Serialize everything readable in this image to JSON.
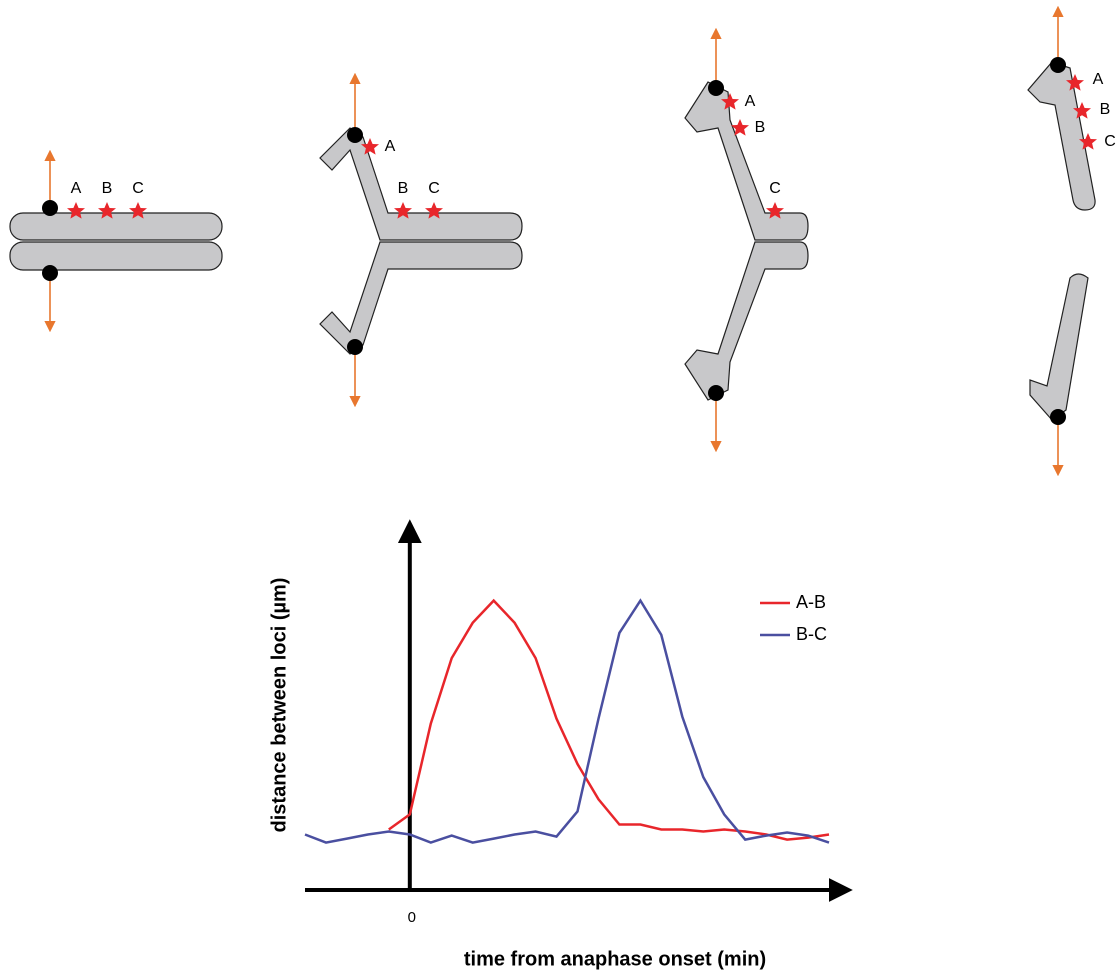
{
  "diagram": {
    "panels": [
      {
        "loci": [
          "A",
          "B",
          "C"
        ]
      },
      {
        "loci": [
          "A",
          "B",
          "C"
        ]
      },
      {
        "loci": [
          "A",
          "B",
          "C"
        ]
      },
      {
        "loci": [
          "A",
          "B",
          "C"
        ]
      }
    ]
  },
  "chart_data": {
    "type": "line",
    "y_label": "distance between loci (µm)",
    "x_label": "time from anaphase onset (min)",
    "x": [
      -5,
      -4,
      -3,
      -2,
      -1,
      0,
      1,
      2,
      3,
      4,
      5,
      6,
      7,
      8,
      9,
      10,
      11,
      12,
      13,
      14,
      15,
      16,
      17,
      18,
      19,
      20
    ],
    "series": [
      {
        "name": "A-B",
        "color": "#e8262b",
        "values": [
          null,
          null,
          null,
          null,
          6,
          7.5,
          16.5,
          23,
          26.5,
          28.7,
          26.5,
          23,
          17,
          12.5,
          9,
          6.5,
          6.5,
          6,
          6,
          5.8,
          6,
          5.8,
          5.5,
          5,
          5.2,
          5.5
        ]
      },
      {
        "name": "B-C",
        "color": "#4a4fa0",
        "values": [
          5.5,
          4.7,
          5.1,
          5.5,
          5.8,
          5.5,
          4.7,
          5.4,
          4.7,
          5.1,
          5.5,
          5.8,
          5.3,
          7.8,
          17,
          25.5,
          28.7,
          25.3,
          17.2,
          11.2,
          7.5,
          5,
          5.4,
          5.7,
          5.4,
          4.7
        ]
      }
    ],
    "xlim": [
      -5,
      21
    ],
    "ylim": [
      0,
      36.5
    ],
    "xticks": [
      0
    ],
    "legend": "upper-right"
  }
}
